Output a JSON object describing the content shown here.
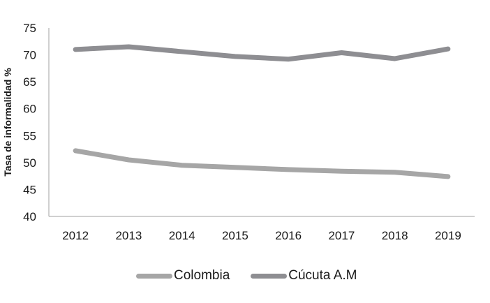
{
  "chart_data": {
    "type": "line",
    "title": "",
    "xlabel": "",
    "ylabel": "Tasa de informalidad %",
    "ylim": [
      40,
      75
    ],
    "yticks": [
      40,
      45,
      50,
      55,
      60,
      65,
      70,
      75
    ],
    "x": [
      "2012",
      "2013",
      "2014",
      "2015",
      "2016",
      "2017",
      "2018",
      "2019"
    ],
    "grid": false,
    "legend_position": "bottom",
    "series": [
      {
        "name": "Colombia",
        "color": "#a6a6a6",
        "values": [
          52.2,
          50.5,
          49.5,
          49.1,
          48.7,
          48.4,
          48.2,
          47.4
        ]
      },
      {
        "name": "Cúcuta A.M",
        "color": "#8e8e92",
        "values": [
          71.0,
          71.5,
          70.6,
          69.7,
          69.2,
          70.4,
          69.3,
          71.1
        ]
      }
    ]
  },
  "legend": {
    "items": [
      {
        "label": "Colombia",
        "color": "#a6a6a6"
      },
      {
        "label": "Cúcuta A.M",
        "color": "#8e8e92"
      }
    ]
  }
}
